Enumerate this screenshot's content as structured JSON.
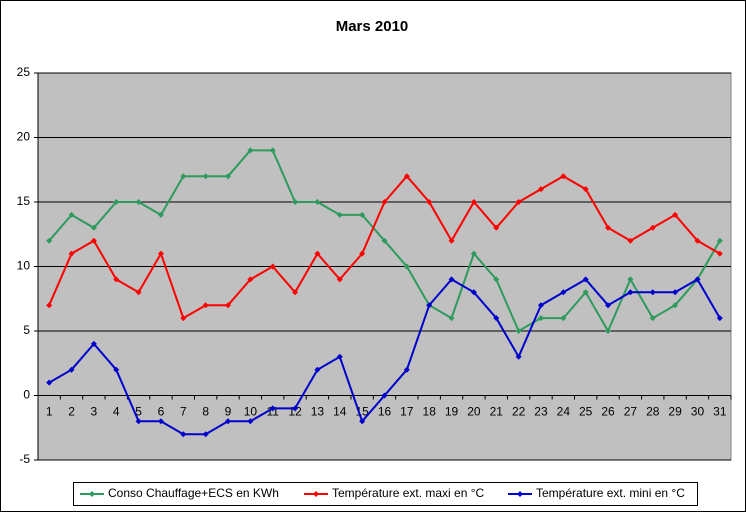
{
  "chart_data": {
    "type": "line",
    "title": "Mars 2010",
    "categories": [
      "1",
      "2",
      "3",
      "4",
      "5",
      "6",
      "7",
      "8",
      "9",
      "10",
      "11",
      "12",
      "13",
      "14",
      "15",
      "16",
      "17",
      "18",
      "19",
      "20",
      "21",
      "22",
      "23",
      "24",
      "25",
      "26",
      "27",
      "28",
      "29",
      "30",
      "31"
    ],
    "series": [
      {
        "name": "Conso Chauffage+ECS en KWh",
        "color": "#2e9a5e",
        "values": [
          12,
          14,
          13,
          15,
          15,
          14,
          17,
          17,
          17,
          19,
          19,
          15,
          15,
          14,
          14,
          12,
          10,
          7,
          6,
          11,
          9,
          5,
          6,
          6,
          8,
          5,
          9,
          6,
          7,
          9,
          12
        ]
      },
      {
        "name": "Température ext. maxi en °C",
        "color": "#ff0000",
        "values": [
          7,
          11,
          12,
          9,
          8,
          11,
          6,
          7,
          7,
          9,
          10,
          8,
          11,
          9,
          11,
          15,
          17,
          15,
          12,
          15,
          13,
          15,
          16,
          17,
          16,
          13,
          12,
          13,
          14,
          12,
          11
        ]
      },
      {
        "name": "Température ext. mini en °C",
        "color": "#0000cc",
        "values": [
          1,
          2,
          4,
          2,
          -2,
          -2,
          -3,
          -3,
          -2,
          -2,
          -1,
          -1,
          2,
          3,
          -2,
          0,
          2,
          7,
          9,
          8,
          6,
          3,
          7,
          8,
          9,
          7,
          8,
          8,
          8,
          9,
          6
        ]
      }
    ],
    "ylim": [
      -5,
      25
    ],
    "yticks": [
      -5,
      0,
      5,
      10,
      15,
      20,
      25
    ],
    "grid": true,
    "legend": "bottom"
  }
}
